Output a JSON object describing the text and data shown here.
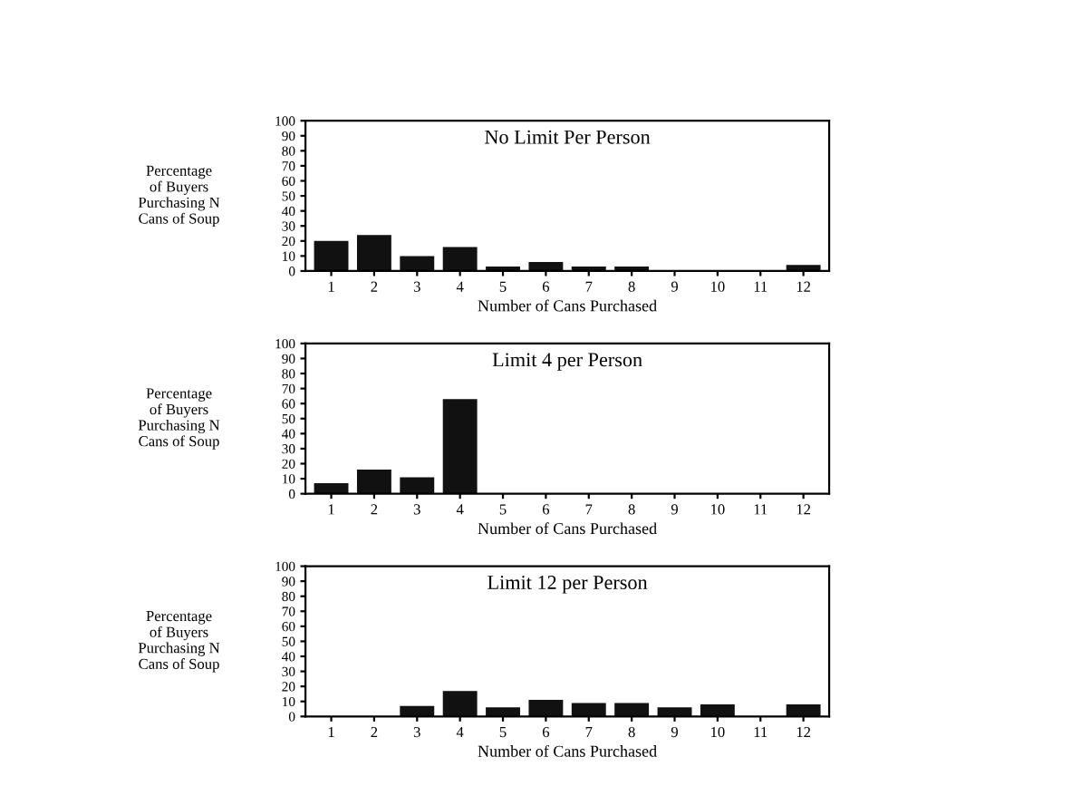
{
  "chart_data": [
    {
      "type": "bar",
      "subtitle": "No Limit Per Person",
      "xlabel": "Number of Cans Purchased",
      "ylabel": "Percentage\nof Buyers\nPurchasing N\nCans of Soup",
      "categories": [
        "1",
        "2",
        "3",
        "4",
        "5",
        "6",
        "7",
        "8",
        "9",
        "10",
        "11",
        "12"
      ],
      "values": [
        20,
        24,
        10,
        16,
        3,
        6,
        3,
        3,
        0,
        0,
        0,
        4
      ],
      "color": "#111111",
      "ylim": [
        0,
        100
      ],
      "yticks": [
        0,
        10,
        20,
        30,
        40,
        50,
        60,
        70,
        80,
        90,
        100
      ],
      "grid": false,
      "legend": false
    },
    {
      "type": "bar",
      "subtitle": "Limit 4 per Person",
      "xlabel": "Number of Cans Purchased",
      "ylabel": "Percentage\nof Buyers\nPurchasing N\nCans of Soup",
      "categories": [
        "1",
        "2",
        "3",
        "4",
        "5",
        "6",
        "7",
        "8",
        "9",
        "10",
        "11",
        "12"
      ],
      "values": [
        7,
        16,
        11,
        63,
        0,
        0,
        0,
        0,
        0,
        0,
        0,
        0
      ],
      "color": "#111111",
      "ylim": [
        0,
        100
      ],
      "yticks": [
        0,
        10,
        20,
        30,
        40,
        50,
        60,
        70,
        80,
        90,
        100
      ],
      "grid": false,
      "legend": false
    },
    {
      "type": "bar",
      "subtitle": "Limit 12 per Person",
      "xlabel": "Number of Cans Purchased",
      "ylabel": "Percentage\nof Buyers\nPurchasing N\nCans of Soup",
      "categories": [
        "1",
        "2",
        "3",
        "4",
        "5",
        "6",
        "7",
        "8",
        "9",
        "10",
        "11",
        "12"
      ],
      "values": [
        0,
        0,
        7,
        17,
        6,
        11,
        9,
        9,
        6,
        8,
        0,
        8
      ],
      "color": "#111111",
      "ylim": [
        0,
        100
      ],
      "yticks": [
        0,
        10,
        20,
        30,
        40,
        50,
        60,
        70,
        80,
        90,
        100
      ],
      "grid": false,
      "legend": false
    }
  ]
}
